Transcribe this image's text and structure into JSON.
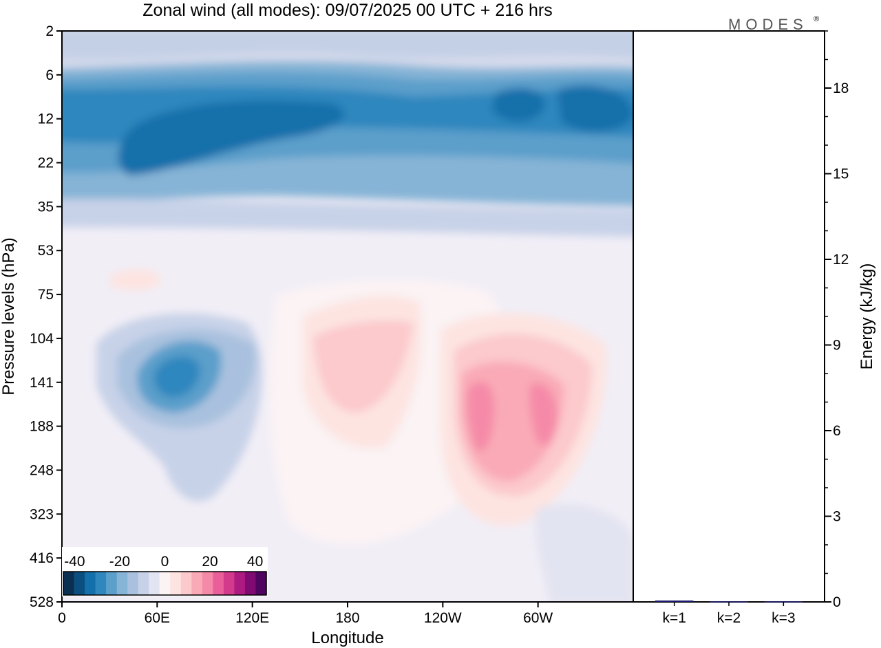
{
  "chart_data": {
    "type": "heatmap",
    "title": "Zonal wind (all modes):  09/07/2025  00 UTC  + 216 hrs",
    "brand": "MODES",
    "brand_mark": "®",
    "main_panel": {
      "xlabel": "Longitude",
      "ylabel": "Pressure levels (hPa)",
      "x_ticks": [
        "0",
        "60E",
        "120E",
        "180",
        "120W",
        "60W"
      ],
      "x_tick_values": [
        0,
        60,
        120,
        180,
        240,
        300
      ],
      "xlim": [
        0,
        360
      ],
      "y_ticks": [
        "2",
        "6",
        "12",
        "22",
        "35",
        "53",
        "75",
        "104",
        "141",
        "188",
        "248",
        "323",
        "416",
        "528"
      ],
      "colorbar": {
        "tick_labels": [
          "-40",
          "-20",
          "0",
          "20",
          "40"
        ],
        "levels": [
          -45,
          -40,
          -35,
          -30,
          -25,
          -20,
          -15,
          -10,
          -5,
          0,
          5,
          10,
          15,
          20,
          25,
          30,
          35,
          40,
          45
        ],
        "colors": [
          "#0a2f50",
          "#0b4f80",
          "#1470aa",
          "#2f87be",
          "#5b9fcb",
          "#86b4d6",
          "#a9c1de",
          "#c7d2e8",
          "#e3e4f1",
          "#fbf3f4",
          "#fde4e1",
          "#fcc9cc",
          "#f9aab6",
          "#f58aa8",
          "#ea5f9a",
          "#d43a8c",
          "#ad1a80",
          "#7e0a72",
          "#4f0460"
        ]
      }
    },
    "energy_panel": {
      "type": "bar",
      "ylabel": "Energy (kJ/kg)",
      "categories": [
        "k=1",
        "k=2",
        "k=3"
      ],
      "values": [
        0.05,
        0.02,
        0.02
      ],
      "y_ticks": [
        "0",
        "3",
        "6",
        "9",
        "12",
        "15",
        "18"
      ],
      "ylim": [
        0,
        20
      ],
      "bar_color": "#1a1a6e"
    }
  }
}
